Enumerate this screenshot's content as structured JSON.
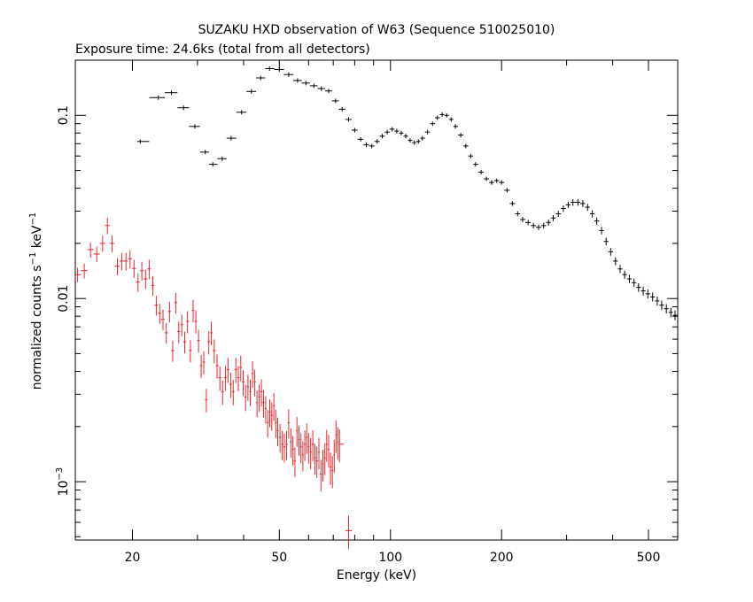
{
  "chart_data": {
    "type": "scatter",
    "title": "SUZAKU HXD observation of W63 (Sequence 510025010)",
    "subtitle": "Exposure time: 24.6ks (total from all detectors)",
    "xlabel": "Energy (keV)",
    "ylabel_main": "normalized counts s",
    "ylabel_exp1": "−1",
    "ylabel_mid": " keV",
    "ylabel_exp2": "−1",
    "x_scale": "log",
    "y_scale": "log",
    "xlim": [
      14,
      600
    ],
    "ylim": [
      0.00048,
      0.2
    ],
    "x_ticks": [
      {
        "value": 20,
        "label": "20"
      },
      {
        "value": 50,
        "label": "50"
      },
      {
        "value": 100,
        "label": "100"
      },
      {
        "value": 200,
        "label": "200"
      },
      {
        "value": 500,
        "label": "500"
      }
    ],
    "y_ticks": [
      {
        "value": 0.1,
        "label": "0.1"
      },
      {
        "value": 0.01,
        "label": "0.01"
      },
      {
        "value": 0.001,
        "label": "10",
        "exp": "−3"
      }
    ],
    "grid": false,
    "legend": "none",
    "series": [
      {
        "color": "#000000",
        "points": [
          [
            21,
            0.072
          ],
          [
            23.5,
            0.125
          ],
          [
            25.5,
            0.133
          ],
          [
            27.5,
            0.11
          ],
          [
            29.5,
            0.087
          ],
          [
            31.5,
            0.063
          ],
          [
            33,
            0.054
          ],
          [
            35,
            0.058
          ],
          [
            37,
            0.075
          ],
          [
            39.5,
            0.104
          ],
          [
            42,
            0.135
          ],
          [
            44.5,
            0.16
          ],
          [
            47,
            0.18
          ],
          [
            50,
            0.178
          ],
          [
            53,
            0.167
          ],
          [
            56,
            0.155
          ],
          [
            59,
            0.15
          ],
          [
            62,
            0.145
          ],
          [
            65,
            0.14
          ],
          [
            68,
            0.136
          ],
          [
            71,
            0.12
          ],
          [
            74,
            0.108
          ],
          [
            77,
            0.095
          ],
          [
            80,
            0.083
          ],
          [
            83,
            0.074
          ],
          [
            86,
            0.069
          ],
          [
            89,
            0.068
          ],
          [
            92,
            0.072
          ],
          [
            95,
            0.077
          ],
          [
            98,
            0.081
          ],
          [
            101,
            0.084
          ],
          [
            104,
            0.082
          ],
          [
            107,
            0.08
          ],
          [
            110,
            0.077
          ],
          [
            113,
            0.073
          ],
          [
            116,
            0.071
          ],
          [
            119,
            0.072
          ],
          [
            122,
            0.075
          ],
          [
            126,
            0.081
          ],
          [
            130,
            0.09
          ],
          [
            134,
            0.097
          ],
          [
            138,
            0.101
          ],
          [
            142,
            0.1
          ],
          [
            146,
            0.095
          ],
          [
            150,
            0.087
          ],
          [
            155,
            0.078
          ],
          [
            160,
            0.068
          ],
          [
            165,
            0.06
          ],
          [
            170,
            0.054
          ],
          [
            176,
            0.049
          ],
          [
            182,
            0.045
          ],
          [
            188,
            0.043
          ],
          [
            194,
            0.044
          ],
          [
            200,
            0.043
          ],
          [
            207,
            0.039
          ],
          [
            214,
            0.033
          ],
          [
            221,
            0.029
          ],
          [
            228,
            0.027
          ],
          [
            236,
            0.026
          ],
          [
            244,
            0.025
          ],
          [
            252,
            0.0245
          ],
          [
            260,
            0.025
          ],
          [
            268,
            0.026
          ],
          [
            276,
            0.0275
          ],
          [
            285,
            0.029
          ],
          [
            294,
            0.031
          ],
          [
            303,
            0.0325
          ],
          [
            312,
            0.0335
          ],
          [
            322,
            0.0335
          ],
          [
            332,
            0.033
          ],
          [
            342,
            0.0315
          ],
          [
            352,
            0.029
          ],
          [
            362,
            0.0265
          ],
          [
            373,
            0.0235
          ],
          [
            384,
            0.0205
          ],
          [
            395,
            0.018
          ],
          [
            407,
            0.016
          ],
          [
            419,
            0.0145
          ],
          [
            431,
            0.0135
          ],
          [
            444,
            0.0128
          ],
          [
            457,
            0.0122
          ],
          [
            470,
            0.0115
          ],
          [
            484,
            0.011
          ],
          [
            498,
            0.0106
          ],
          [
            513,
            0.0102
          ],
          [
            528,
            0.0097
          ],
          [
            543,
            0.0092
          ],
          [
            559,
            0.0088
          ],
          [
            575,
            0.0084
          ],
          [
            590,
            0.0081
          ]
        ]
      },
      {
        "color": "#e8262a",
        "points": [
          [
            14.2,
            0.0135
          ],
          [
            14.8,
            0.0142
          ],
          [
            15.4,
            0.0185
          ],
          [
            16,
            0.0175
          ],
          [
            16.6,
            0.02
          ],
          [
            17.1,
            0.025
          ],
          [
            17.6,
            0.02
          ],
          [
            18.2,
            0.015
          ],
          [
            18.7,
            0.016
          ],
          [
            19.2,
            0.016
          ],
          [
            19.7,
            0.0165
          ],
          [
            20.2,
            0.0146
          ],
          [
            20.7,
            0.0123
          ],
          [
            21.2,
            0.0142
          ],
          [
            21.7,
            0.0128
          ],
          [
            22.2,
            0.0145
          ],
          [
            22.7,
            0.0118
          ],
          [
            23.2,
            0.0092
          ],
          [
            23.7,
            0.0083
          ],
          [
            24.2,
            0.0077
          ],
          [
            24.7,
            0.0065
          ],
          [
            25.2,
            0.0085
          ],
          [
            25.7,
            0.0052
          ],
          [
            26.2,
            0.0095
          ],
          [
            26.7,
            0.0066
          ],
          [
            27.2,
            0.0072
          ],
          [
            27.7,
            0.0058
          ],
          [
            28.2,
            0.0075
          ],
          [
            28.7,
            0.0052
          ],
          [
            29.2,
            0.0086
          ],
          [
            29.7,
            0.0075
          ],
          [
            30.2,
            0.0059
          ],
          [
            30.7,
            0.0043
          ],
          [
            31.2,
            0.0045
          ],
          [
            31.7,
            0.0028
          ],
          [
            32.2,
            0.0058
          ],
          [
            32.7,
            0.0065
          ],
          [
            33.3,
            0.0052
          ],
          [
            33.9,
            0.0043
          ],
          [
            34.5,
            0.0037
          ],
          [
            35.1,
            0.0031
          ],
          [
            35.7,
            0.0037
          ],
          [
            36.3,
            0.0041
          ],
          [
            36.9,
            0.0034
          ],
          [
            37.5,
            0.0031
          ],
          [
            38.1,
            0.0041
          ],
          [
            38.7,
            0.0037
          ],
          [
            39.3,
            0.0042
          ],
          [
            39.9,
            0.0035
          ],
          [
            40.5,
            0.0029
          ],
          [
            41.1,
            0.0033
          ],
          [
            41.7,
            0.0031
          ],
          [
            42.3,
            0.0039
          ],
          [
            42.9,
            0.0035
          ],
          [
            43.5,
            0.0027
          ],
          [
            44.1,
            0.0029
          ],
          [
            44.7,
            0.0031
          ],
          [
            45.3,
            0.0027
          ],
          [
            45.9,
            0.0025
          ],
          [
            46.5,
            0.0021
          ],
          [
            47.1,
            0.0024
          ],
          [
            47.7,
            0.0023
          ],
          [
            48.3,
            0.0026
          ],
          [
            48.9,
            0.0021
          ],
          [
            49.5,
            0.0019
          ],
          [
            50.2,
            0.00175
          ],
          [
            50.9,
            0.0016
          ],
          [
            51.6,
            0.00155
          ],
          [
            52.3,
            0.0016
          ],
          [
            53,
            0.0021
          ],
          [
            53.7,
            0.00165
          ],
          [
            54.4,
            0.0015
          ],
          [
            55.1,
            0.0013
          ],
          [
            55.8,
            0.0019
          ],
          [
            56.5,
            0.0017
          ],
          [
            57.2,
            0.00155
          ],
          [
            57.9,
            0.0014
          ],
          [
            58.6,
            0.0016
          ],
          [
            59.3,
            0.00175
          ],
          [
            60,
            0.00155
          ],
          [
            60.8,
            0.00145
          ],
          [
            61.6,
            0.0016
          ],
          [
            62.4,
            0.00135
          ],
          [
            63.2,
            0.0013
          ],
          [
            64,
            0.00145
          ],
          [
            64.8,
            0.0011
          ],
          [
            65.6,
            0.00125
          ],
          [
            66.4,
            0.00135
          ],
          [
            67.2,
            0.0016
          ],
          [
            68,
            0.0015
          ],
          [
            68.8,
            0.0012
          ],
          [
            69.6,
            0.00115
          ],
          [
            70.4,
            0.0014
          ],
          [
            71.2,
            0.0018
          ],
          [
            72,
            0.00165
          ],
          [
            72.8,
            0.0016
          ],
          [
            77,
            0.00054
          ]
        ]
      }
    ]
  }
}
